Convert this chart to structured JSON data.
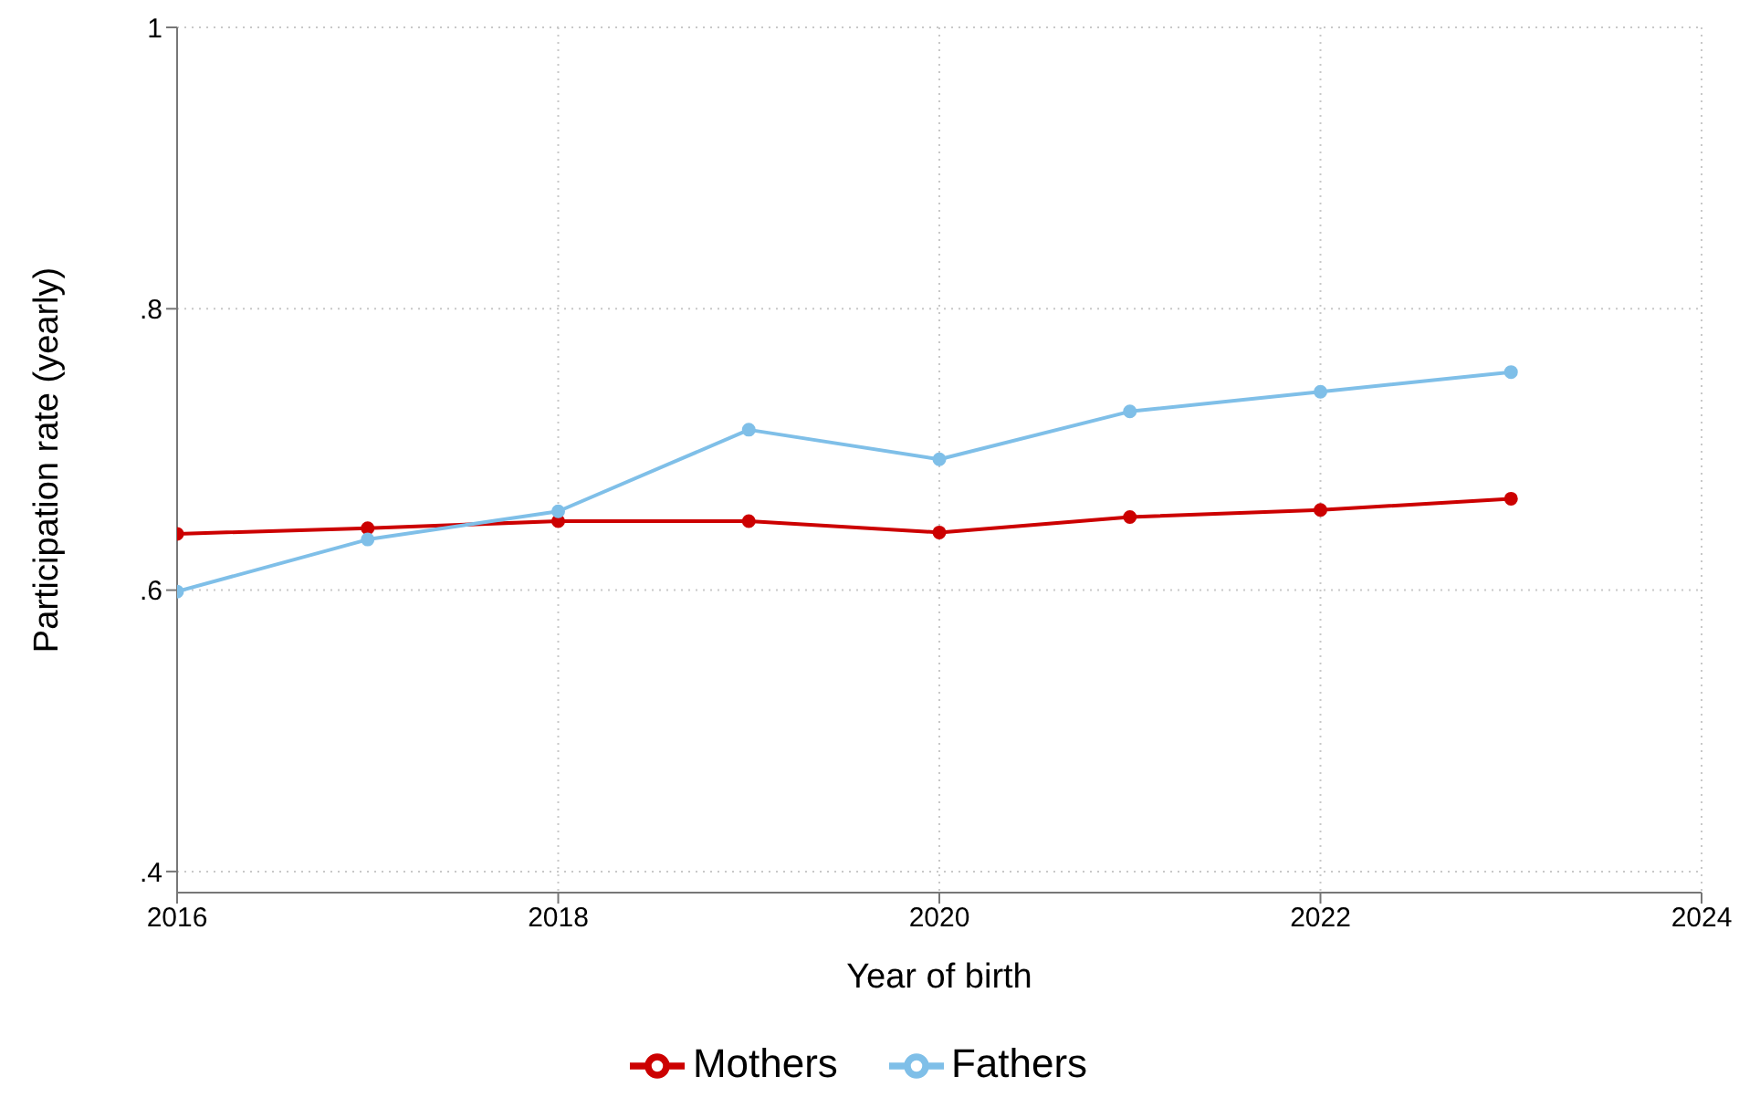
{
  "chart_data": {
    "type": "line",
    "xlabel": "Year of birth",
    "ylabel": "Participation rate (yearly)",
    "x": [
      2016,
      2017,
      2018,
      2019,
      2020,
      2021,
      2022,
      2023
    ],
    "series": [
      {
        "name": "Mothers",
        "color": "#cc0000",
        "values": [
          0.64,
          0.644,
          0.649,
          0.649,
          0.641,
          0.652,
          0.657,
          0.665
        ]
      },
      {
        "name": "Fathers",
        "color": "#7fbfe8",
        "values": [
          0.599,
          0.636,
          0.656,
          0.714,
          0.693,
          0.727,
          0.741,
          0.755
        ]
      }
    ],
    "xlim": [
      2016,
      2024
    ],
    "xticks": [
      2016,
      2018,
      2020,
      2022,
      2024
    ],
    "ylim": [
      0.385,
      1
    ],
    "yticks": [
      {
        "value": 0.4,
        "label": ".4"
      },
      {
        "value": 0.6,
        "label": ".6"
      },
      {
        "value": 0.8,
        "label": ".8"
      },
      1
    ],
    "grid": true,
    "legend": "bottom",
    "marker": "circle",
    "line_style": "solid"
  }
}
